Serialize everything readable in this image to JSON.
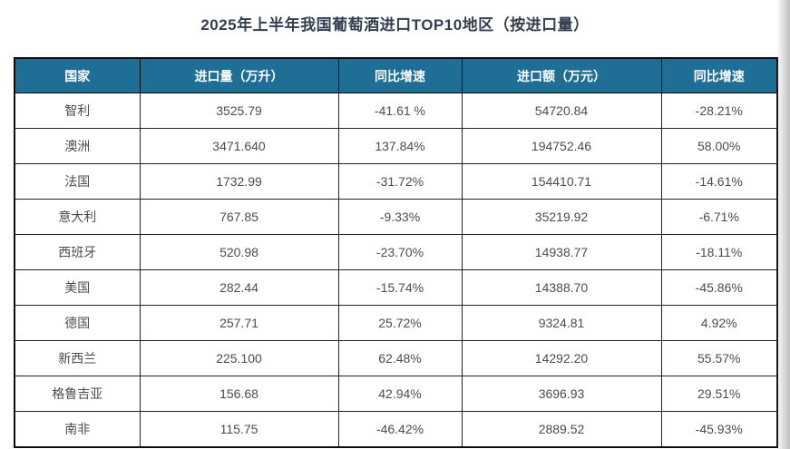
{
  "title": "2025年上半年我国葡萄酒进口TOP10地区（按进口量）",
  "chart_data": {
    "type": "table",
    "title": "2025年上半年我国葡萄酒进口TOP10地区（按进口量）",
    "columns": [
      "国家",
      "进口量（万升）",
      "同比增速",
      "进口额（万元）",
      "同比增速"
    ],
    "rows": [
      [
        "智利",
        "3525.79",
        "-41.61 %",
        "54720.84",
        "-28.21%"
      ],
      [
        "澳洲",
        "3471.640",
        "137.84%",
        "194752.46",
        "58.00%"
      ],
      [
        "法国",
        "1732.99",
        "-31.72%",
        "154410.71",
        "-14.61%"
      ],
      [
        "意大利",
        "767.85",
        "-9.33%",
        "35219.92",
        "-6.71%"
      ],
      [
        "西班牙",
        "520.98",
        "-23.70%",
        "14938.77",
        "-18.11%"
      ],
      [
        "美国",
        "282.44",
        "-15.74%",
        "14388.70",
        "-45.86%"
      ],
      [
        "德国",
        "257.71",
        "25.72%",
        "9324.81",
        "4.92%"
      ],
      [
        "新西兰",
        "225.100",
        "62.48%",
        "14292.20",
        "55.57%"
      ],
      [
        "格鲁吉亚",
        "156.68",
        "42.94%",
        "3696.93",
        "29.51%"
      ],
      [
        "南非",
        "115.75",
        "-46.42%",
        "2889.52",
        "-45.93%"
      ]
    ]
  },
  "colors": {
    "page_bg": "#FFFFFF",
    "header_bg": "#1F6E96",
    "header_text": "#FFFFFF",
    "outer_border": "#0D0D0D",
    "grid_line": "#222222",
    "title_text": "#333F50",
    "cell_text": "#4C4C4C",
    "edge_shadow": "#BDBDBD"
  }
}
